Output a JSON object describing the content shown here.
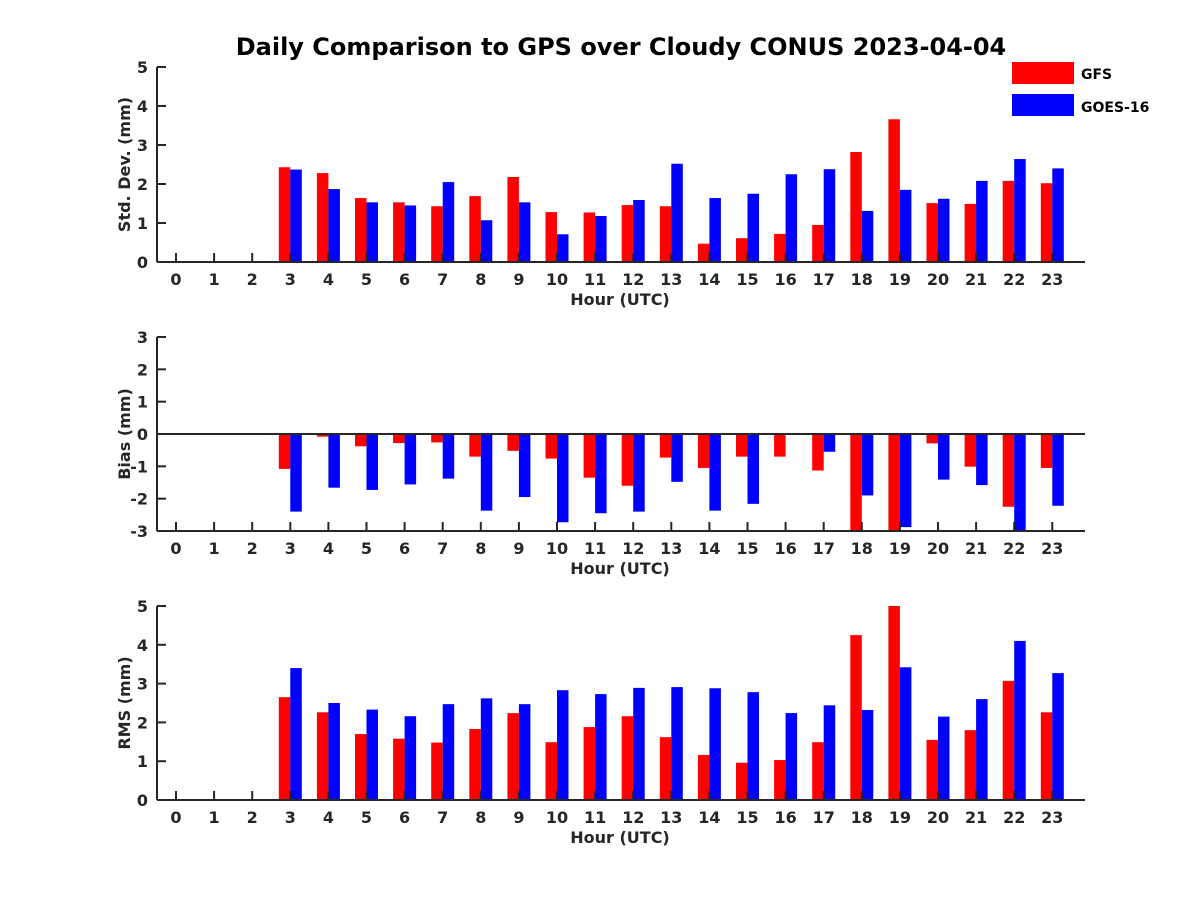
{
  "title": "Daily Comparison to GPS over Cloudy CONUS 2023-04-04",
  "colors": {
    "GFS": "#ff0000",
    "GOES-16": "#0000ff",
    "axis": "#262626"
  },
  "legend": {
    "placement": "top-right",
    "entries": [
      "GFS",
      "GOES-16"
    ]
  },
  "chart_data": [
    {
      "type": "bar",
      "ylabel": "Std. Dev. (mm)",
      "xlabel": "Hour (UTC)",
      "ylim": [
        0,
        5
      ],
      "yticks": [
        0,
        1,
        2,
        3,
        4,
        5
      ],
      "zero_line": false,
      "categories": [
        "0",
        "1",
        "2",
        "3",
        "4",
        "5",
        "6",
        "7",
        "8",
        "9",
        "10",
        "11",
        "12",
        "13",
        "14",
        "15",
        "16",
        "17",
        "18",
        "19",
        "20",
        "21",
        "22",
        "23"
      ],
      "series": [
        {
          "name": "GFS",
          "values": [
            null,
            null,
            null,
            2.43,
            2.28,
            1.64,
            1.53,
            1.43,
            1.69,
            2.18,
            1.28,
            1.27,
            1.46,
            1.43,
            0.47,
            0.61,
            0.72,
            0.95,
            2.82,
            3.66,
            1.51,
            1.49,
            2.08,
            2.02
          ]
        },
        {
          "name": "GOES-16",
          "values": [
            null,
            null,
            null,
            2.37,
            1.87,
            1.53,
            1.45,
            2.05,
            1.07,
            1.53,
            0.71,
            1.18,
            1.59,
            2.52,
            1.64,
            1.75,
            2.25,
            2.38,
            1.31,
            1.85,
            1.62,
            2.08,
            2.64,
            2.4
          ]
        }
      ]
    },
    {
      "type": "bar",
      "ylabel": "Bias (mm)",
      "xlabel": "Hour (UTC)",
      "ylim": [
        -3,
        3
      ],
      "yticks": [
        -3,
        -2,
        -1,
        0,
        1,
        2,
        3
      ],
      "zero_line": true,
      "categories": [
        "0",
        "1",
        "2",
        "3",
        "4",
        "5",
        "6",
        "7",
        "8",
        "9",
        "10",
        "11",
        "12",
        "13",
        "14",
        "15",
        "16",
        "17",
        "18",
        "19",
        "20",
        "21",
        "22",
        "23"
      ],
      "series": [
        {
          "name": "GFS",
          "values": [
            null,
            null,
            null,
            -1.08,
            -0.08,
            -0.38,
            -0.28,
            -0.26,
            -0.7,
            -0.52,
            -0.76,
            -1.35,
            -1.6,
            -0.73,
            -1.05,
            -0.7,
            -0.7,
            -1.13,
            -3.0,
            -3.0,
            -0.29,
            -1.01,
            -2.25,
            -1.05
          ]
        },
        {
          "name": "GOES-16",
          "values": [
            null,
            null,
            null,
            -2.4,
            -1.66,
            -1.73,
            -1.56,
            -1.38,
            -2.37,
            -1.95,
            -2.73,
            -2.45,
            -2.4,
            -1.48,
            -2.37,
            -2.16,
            0,
            -0.55,
            -1.9,
            -2.88,
            -1.41,
            -1.58,
            -3.0,
            -2.22
          ]
        }
      ]
    },
    {
      "type": "bar",
      "ylabel": "RMS (mm)",
      "xlabel": "Hour (UTC)",
      "ylim": [
        0,
        5
      ],
      "yticks": [
        0,
        1,
        2,
        3,
        4,
        5
      ],
      "zero_line": false,
      "categories": [
        "0",
        "1",
        "2",
        "3",
        "4",
        "5",
        "6",
        "7",
        "8",
        "9",
        "10",
        "11",
        "12",
        "13",
        "14",
        "15",
        "16",
        "17",
        "18",
        "19",
        "20",
        "21",
        "22",
        "23"
      ],
      "series": [
        {
          "name": "GFS",
          "values": [
            null,
            null,
            null,
            2.65,
            2.26,
            1.7,
            1.58,
            1.48,
            1.83,
            2.24,
            1.49,
            1.88,
            2.16,
            1.62,
            1.16,
            0.96,
            1.03,
            1.49,
            4.25,
            5.0,
            1.55,
            1.8,
            3.07,
            2.26
          ]
        },
        {
          "name": "GOES-16",
          "values": [
            null,
            null,
            null,
            3.4,
            2.5,
            2.33,
            2.16,
            2.47,
            2.62,
            2.47,
            2.83,
            2.73,
            2.89,
            2.91,
            2.88,
            2.78,
            2.24,
            2.44,
            2.32,
            3.42,
            2.15,
            2.6,
            4.1,
            3.27
          ]
        }
      ]
    }
  ]
}
